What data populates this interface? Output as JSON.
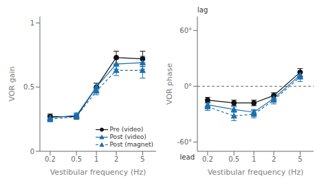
{
  "chart_data": [
    {
      "type": "line",
      "x": [
        0.2,
        0.5,
        1,
        2,
        5
      ],
      "xlabel": "Vestibular frequency (Hz)",
      "ylabel": "VOR gain",
      "log": "x",
      "xlim": [
        0.14,
        8
      ],
      "xticks": [
        0.2,
        0.5,
        1,
        2,
        5
      ],
      "ylim": [
        0,
        1.05
      ],
      "yticks": [
        0,
        0.5,
        1
      ],
      "grid": false,
      "legend": "lower right",
      "series": [
        {
          "name": "Pre (video)",
          "color": "#111111",
          "marker": "circle",
          "line_style": "solid",
          "values": [
            0.27,
            0.27,
            0.5,
            0.73,
            0.72
          ],
          "errors": [
            0.02,
            0.02,
            0.03,
            0.05,
            0.06
          ]
        },
        {
          "name": "Post (video)",
          "color": "#1a6faf",
          "marker": "triangle",
          "line_style": "solid",
          "values": [
            0.26,
            0.28,
            0.5,
            0.68,
            0.69
          ],
          "errors": [
            0.02,
            0.02,
            0.03,
            0.04,
            0.05
          ]
        },
        {
          "name": "Post (magnet)",
          "color": "#1a6faf",
          "marker": "triangle",
          "line_style": "dashed",
          "values": [
            0.25,
            0.27,
            0.47,
            0.63,
            0.63
          ],
          "errors": [
            0.02,
            0.02,
            0.03,
            0.04,
            0.06
          ]
        }
      ]
    },
    {
      "type": "line",
      "x": [
        0.2,
        0.5,
        1,
        2,
        5
      ],
      "xlabel": "Vestibular frequency (Hz)",
      "ylabel": "VOR phase",
      "log": "x",
      "xlim": [
        0.14,
        8
      ],
      "xticks": [
        0.2,
        0.5,
        1,
        2,
        5
      ],
      "ylim": [
        -70,
        75
      ],
      "yticks": [
        {
          "value": -60,
          "label": "-60°"
        },
        {
          "value": 0,
          "label": "0°"
        },
        {
          "value": 60,
          "label": "60°"
        }
      ],
      "grid": false,
      "hline": 0,
      "annotations": [
        "lag",
        "lead"
      ],
      "series": [
        {
          "color": "#111111",
          "marker": "circle",
          "line_style": "solid",
          "values": [
            -15,
            -18,
            -18,
            -10,
            15
          ],
          "errors": [
            3,
            3,
            3,
            3,
            4
          ]
        },
        {
          "color": "#1a6faf",
          "marker": "triangle",
          "line_style": "solid",
          "values": [
            -20,
            -25,
            -28,
            -13,
            12
          ],
          "errors": [
            3,
            3,
            3,
            3,
            4
          ]
        },
        {
          "color": "#1a6faf",
          "marker": "triangle",
          "line_style": "dashed",
          "values": [
            -22,
            -32,
            -30,
            -15,
            10
          ],
          "errors": [
            4,
            5,
            4,
            4,
            5
          ]
        }
      ]
    }
  ]
}
